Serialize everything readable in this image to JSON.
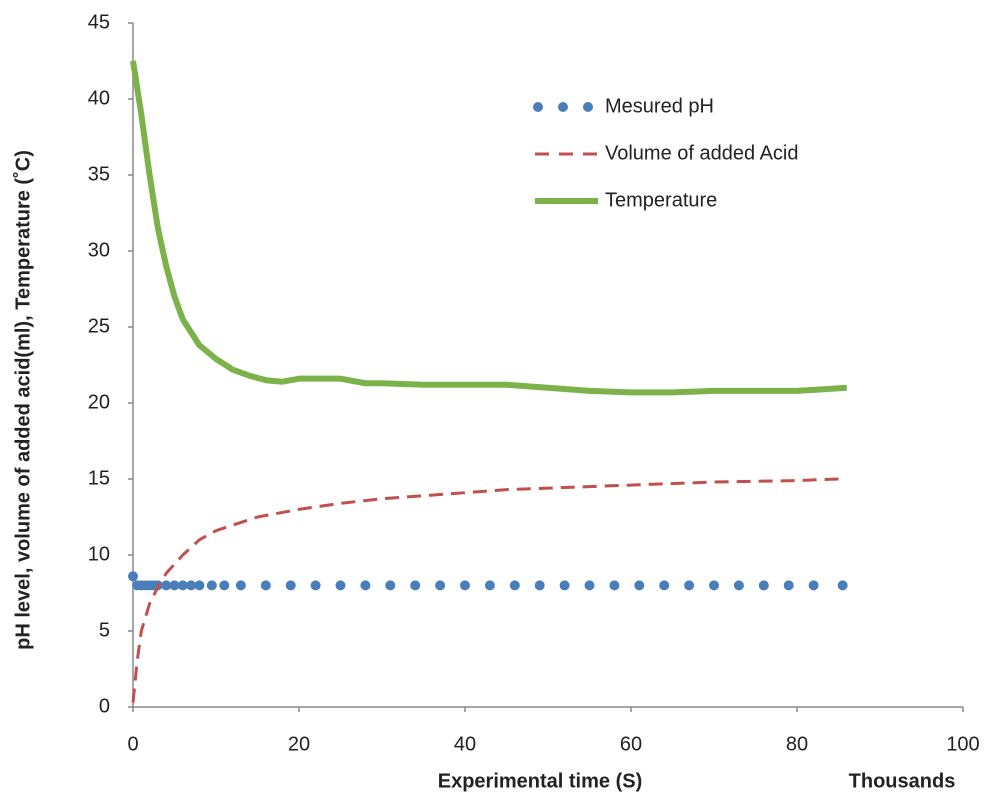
{
  "chart_data": {
    "type": "line",
    "x_label": "Experimental time (S)",
    "x_unit_label": "Thousands",
    "y_label": "pH level, volume of added acid(ml), Temperature (˚C)",
    "xlim": [
      0,
      100
    ],
    "xticks": [
      0,
      20,
      40,
      60,
      80,
      100
    ],
    "ylim": [
      0,
      45
    ],
    "yticks": [
      0,
      5,
      10,
      15,
      20,
      25,
      30,
      35,
      40,
      45
    ],
    "grid": false,
    "legend": "upper right",
    "series": [
      {
        "name": "Mesured pH",
        "color": "#4a7ebb",
        "style": "dotted",
        "x": [
          0,
          0.5,
          1,
          1.5,
          2,
          2.5,
          3,
          4,
          5,
          6,
          7,
          8,
          9.5,
          11,
          13,
          16,
          19,
          22,
          25,
          28,
          31,
          34,
          37,
          40,
          43,
          46,
          49,
          52,
          55,
          58,
          61,
          64,
          67,
          70,
          73,
          76,
          79,
          82,
          85.5
        ],
        "values": [
          8.6,
          8.0,
          8.0,
          8.0,
          8.0,
          8.0,
          8.0,
          8.0,
          8.0,
          8.0,
          8.0,
          8.0,
          8.0,
          8.0,
          8.0,
          8.0,
          8.0,
          8.0,
          8.0,
          8.0,
          8.0,
          8.0,
          8.0,
          8.0,
          8.0,
          8.0,
          8.0,
          8.0,
          8.0,
          8.0,
          8.0,
          8.0,
          8.0,
          8.0,
          8.0,
          8.0,
          8.0,
          8.0,
          8.0
        ]
      },
      {
        "name": "Volume of added Acid",
        "color": "#c0504d",
        "style": "dashed",
        "x": [
          0,
          0.5,
          1,
          2,
          3,
          4,
          6,
          8,
          10,
          15,
          20,
          25,
          30,
          35,
          40,
          45,
          50,
          55,
          60,
          70,
          80,
          85
        ],
        "values": [
          0.3,
          3,
          5,
          6.8,
          7.9,
          8.8,
          10,
          11,
          11.6,
          12.5,
          13,
          13.4,
          13.7,
          13.9,
          14.1,
          14.3,
          14.4,
          14.5,
          14.6,
          14.8,
          14.9,
          15
        ]
      },
      {
        "name": "Temperature",
        "color": "#7cb24a",
        "style": "solid",
        "x": [
          0,
          1,
          2,
          3,
          4,
          5,
          6,
          8,
          10,
          12,
          14,
          16,
          18,
          20,
          22,
          25,
          28,
          30,
          35,
          40,
          45,
          50,
          55,
          60,
          65,
          70,
          75,
          80,
          83,
          86
        ],
        "values": [
          42.5,
          39,
          35,
          31.5,
          29,
          27,
          25.5,
          23.8,
          22.9,
          22.2,
          21.8,
          21.5,
          21.4,
          21.6,
          21.6,
          21.6,
          21.3,
          21.3,
          21.2,
          21.2,
          21.2,
          21.0,
          20.8,
          20.7,
          20.7,
          20.8,
          20.8,
          20.8,
          20.9,
          21.0
        ]
      }
    ]
  }
}
